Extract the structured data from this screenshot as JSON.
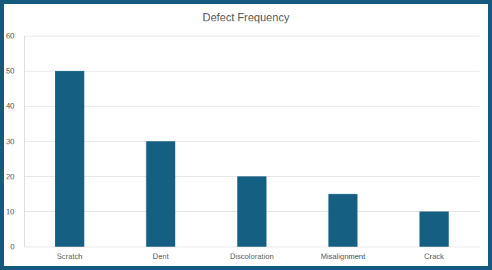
{
  "chart_data": {
    "type": "bar",
    "title": "Defect Frequency",
    "categories": [
      "Scratch",
      "Dent",
      "Discoloration",
      "Misalignment",
      "Crack"
    ],
    "values": [
      50,
      30,
      20,
      15,
      10
    ],
    "color": "#156082",
    "ylim": [
      0,
      60
    ],
    "yticks": [
      0,
      10,
      20,
      30,
      40,
      50,
      60
    ],
    "grid": true
  }
}
